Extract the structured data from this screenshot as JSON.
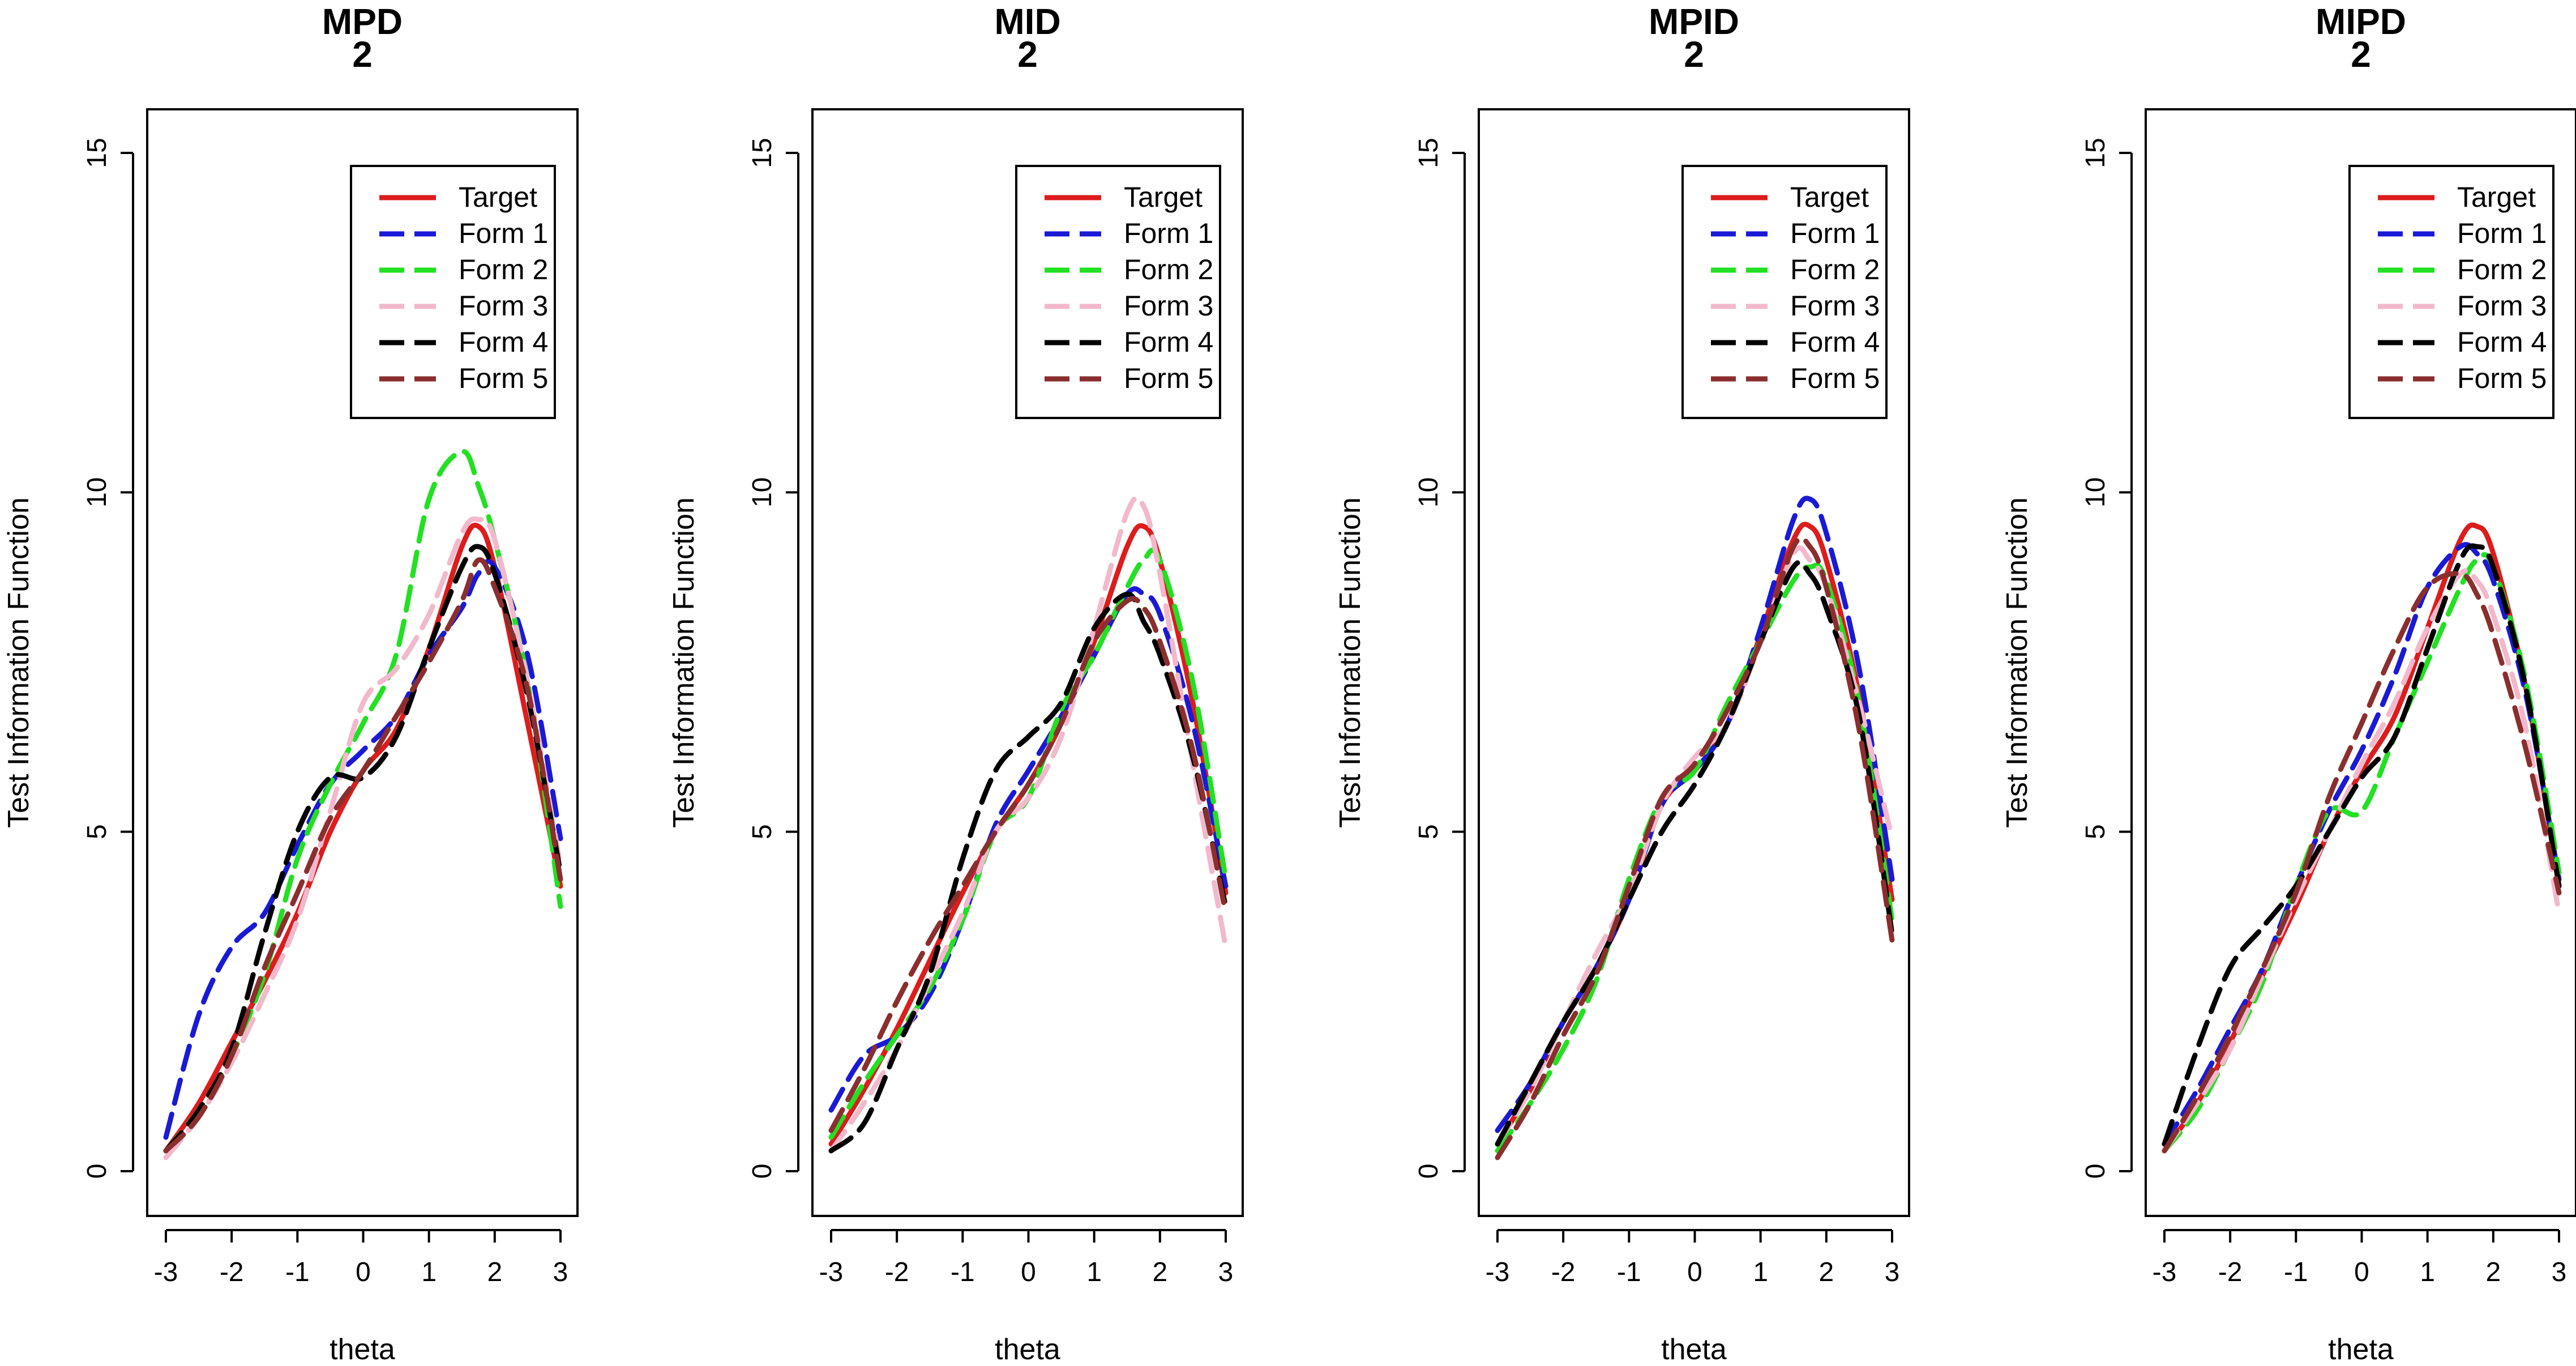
{
  "chart_data": [
    {
      "type": "line",
      "title": "MPD",
      "subtitle": "2",
      "xlabel": "theta",
      "ylabel": "Test Information Function",
      "xlim": [
        -3,
        3
      ],
      "ylim": [
        0,
        15
      ],
      "x_ticks": [
        "-3",
        "-2",
        "-1",
        "0",
        "1",
        "2",
        "3"
      ],
      "y_ticks": [
        "0",
        "5",
        "10",
        "15"
      ],
      "legend_position": "top-right",
      "x": [
        -3,
        -2.5,
        -2,
        -1.5,
        -1,
        -0.5,
        0,
        0.5,
        1,
        1.5,
        1.75,
        2,
        2.5,
        3
      ],
      "series": [
        {
          "name": "Target",
          "color": "#dd1c1c",
          "dash": "solid",
          "values": [
            0.3,
            1.0,
            1.9,
            2.8,
            3.8,
            5.0,
            5.9,
            6.5,
            7.7,
            9.2,
            9.5,
            8.9,
            6.6,
            4.2
          ]
        },
        {
          "name": "Form 1",
          "color": "#1a1ad6",
          "dash": "dashed",
          "values": [
            0.5,
            2.3,
            3.3,
            3.8,
            4.8,
            5.7,
            6.2,
            6.7,
            7.6,
            8.3,
            8.8,
            8.9,
            7.6,
            4.9
          ]
        },
        {
          "name": "Form 2",
          "color": "#22e022",
          "dash": "dashed",
          "values": [
            0.3,
            0.9,
            1.7,
            2.9,
            4.6,
            5.7,
            6.6,
            7.6,
            9.9,
            10.6,
            10.1,
            9.3,
            7.2,
            3.9
          ]
        },
        {
          "name": "Form 3",
          "color": "#f2b8cc",
          "dash": "dashed",
          "values": [
            0.2,
            0.8,
            1.6,
            2.6,
            3.7,
            5.3,
            6.9,
            7.4,
            8.2,
            9.4,
            9.6,
            9.3,
            7.2,
            4.5
          ]
        },
        {
          "name": "Form 4",
          "color": "#000000",
          "dash": "dashed",
          "values": [
            0.3,
            0.9,
            1.8,
            3.5,
            5.0,
            5.8,
            5.8,
            6.4,
            7.7,
            8.9,
            9.2,
            8.8,
            7.0,
            4.4
          ]
        },
        {
          "name": "Form 5",
          "color": "#8b2e2e",
          "dash": "dashed",
          "values": [
            0.3,
            0.8,
            1.7,
            3.0,
            4.1,
            5.2,
            5.9,
            6.7,
            7.5,
            8.4,
            9.0,
            8.6,
            7.1,
            4.3
          ]
        }
      ]
    },
    {
      "type": "line",
      "title": "MID",
      "subtitle": "2",
      "xlabel": "theta",
      "ylabel": "Test Information Function",
      "xlim": [
        -3,
        3
      ],
      "ylim": [
        0,
        15
      ],
      "x_ticks": [
        "-3",
        "-2",
        "-1",
        "0",
        "1",
        "2",
        "3"
      ],
      "y_ticks": [
        "0",
        "5",
        "10",
        "15"
      ],
      "legend_position": "top-right",
      "x": [
        -3,
        -2.5,
        -2,
        -1.5,
        -1,
        -0.5,
        0,
        0.5,
        1,
        1.5,
        1.75,
        2,
        2.5,
        3
      ],
      "series": [
        {
          "name": "Target",
          "color": "#dd1c1c",
          "dash": "solid",
          "values": [
            0.4,
            1.2,
            2.1,
            3.1,
            4.1,
            5.0,
            5.7,
            6.6,
            7.8,
            9.2,
            9.5,
            9.0,
            6.9,
            4.1
          ]
        },
        {
          "name": "Form 1",
          "color": "#1a1ad6",
          "dash": "dashed",
          "values": [
            0.9,
            1.7,
            2.0,
            2.6,
            3.7,
            5.1,
            5.9,
            6.7,
            7.6,
            8.5,
            8.5,
            8.2,
            6.6,
            4.2
          ]
        },
        {
          "name": "Form 2",
          "color": "#22e022",
          "dash": "dashed",
          "values": [
            0.5,
            1.3,
            2.0,
            2.7,
            3.7,
            5.0,
            5.5,
            6.8,
            7.6,
            8.6,
            9.0,
            9.0,
            7.2,
            4.3
          ]
        },
        {
          "name": "Form 3",
          "color": "#f2b8cc",
          "dash": "dashed",
          "values": [
            0.3,
            1.0,
            1.8,
            2.8,
            3.8,
            5.0,
            5.5,
            6.4,
            8.0,
            9.7,
            9.8,
            8.8,
            6.0,
            3.3
          ]
        },
        {
          "name": "Form 4",
          "color": "#000000",
          "dash": "dashed",
          "values": [
            0.3,
            0.7,
            1.8,
            2.9,
            4.6,
            5.9,
            6.4,
            6.9,
            8.0,
            8.5,
            8.1,
            7.6,
            6.1,
            3.9
          ]
        },
        {
          "name": "Form 5",
          "color": "#8b2e2e",
          "dash": "dashed",
          "values": [
            0.6,
            1.5,
            2.5,
            3.4,
            4.2,
            5.0,
            5.7,
            6.6,
            7.8,
            8.4,
            8.3,
            7.8,
            6.2,
            3.8
          ]
        }
      ]
    },
    {
      "type": "line",
      "title": "MPID",
      "subtitle": "2",
      "xlabel": "theta",
      "ylabel": "Test Information Function",
      "xlim": [
        -3,
        3
      ],
      "ylim": [
        0,
        15
      ],
      "x_ticks": [
        "-3",
        "-2",
        "-1",
        "0",
        "1",
        "2",
        "3"
      ],
      "y_ticks": [
        "0",
        "5",
        "10",
        "15"
      ],
      "legend_position": "top-right",
      "x": [
        -3,
        -2.5,
        -2,
        -1.5,
        -1,
        -0.5,
        0,
        0.5,
        1,
        1.5,
        1.75,
        2,
        2.5,
        3
      ],
      "series": [
        {
          "name": "Target",
          "color": "#dd1c1c",
          "dash": "solid",
          "values": [
            0.4,
            1.2,
            2.2,
            3.0,
            4.0,
            5.4,
            5.9,
            6.6,
            7.9,
            9.3,
            9.5,
            9.0,
            7.0,
            4.0
          ]
        },
        {
          "name": "Form 1",
          "color": "#1a1ad6",
          "dash": "dashed",
          "values": [
            0.6,
            1.3,
            2.2,
            3.0,
            4.0,
            5.4,
            5.9,
            6.6,
            8.0,
            9.6,
            9.9,
            9.4,
            7.4,
            4.3
          ]
        },
        {
          "name": "Form 2",
          "color": "#22e022",
          "dash": "dashed",
          "values": [
            0.3,
            1.0,
            1.8,
            2.8,
            4.3,
            5.5,
            5.9,
            6.9,
            7.8,
            8.7,
            8.9,
            8.7,
            6.9,
            3.7
          ]
        },
        {
          "name": "Form 3",
          "color": "#f2b8cc",
          "dash": "dashed",
          "values": [
            0.4,
            1.2,
            2.2,
            3.2,
            4.1,
            5.4,
            6.1,
            6.6,
            7.8,
            9.1,
            9.0,
            8.6,
            6.9,
            4.9
          ]
        },
        {
          "name": "Form 4",
          "color": "#000000",
          "dash": "dashed",
          "values": [
            0.4,
            1.3,
            2.2,
            3.0,
            4.0,
            5.0,
            5.7,
            6.6,
            7.8,
            8.9,
            8.8,
            8.3,
            6.7,
            3.5
          ]
        },
        {
          "name": "Form 5",
          "color": "#8b2e2e",
          "dash": "dashed",
          "values": [
            0.2,
            1.0,
            2.0,
            2.9,
            4.2,
            5.5,
            6.0,
            6.8,
            7.8,
            9.2,
            9.2,
            8.6,
            6.5,
            3.4
          ]
        }
      ]
    },
    {
      "type": "line",
      "title": "MIPD",
      "subtitle": "2",
      "xlabel": "theta",
      "ylabel": "Test Information Function",
      "xlim": [
        -3,
        3
      ],
      "ylim": [
        0,
        15
      ],
      "x_ticks": [
        "-3",
        "-2",
        "-1",
        "0",
        "1",
        "2",
        "3"
      ],
      "y_ticks": [
        "0",
        "5",
        "10",
        "15"
      ],
      "legend_position": "top-right",
      "x": [
        -3,
        -2.5,
        -2,
        -1.5,
        -1,
        -0.5,
        0,
        0.5,
        1,
        1.5,
        1.75,
        2,
        2.5,
        3
      ],
      "series": [
        {
          "name": "Target",
          "color": "#dd1c1c",
          "dash": "solid",
          "values": [
            0.3,
            1.0,
            1.9,
            2.9,
            3.9,
            5.0,
            5.9,
            6.7,
            8.0,
            9.3,
            9.5,
            9.1,
            7.1,
            4.2
          ]
        },
        {
          "name": "Form 1",
          "color": "#1a1ad6",
          "dash": "dashed",
          "values": [
            0.4,
            1.2,
            2.1,
            3.0,
            4.2,
            5.3,
            6.2,
            7.3,
            8.6,
            9.2,
            9.1,
            8.7,
            7.0,
            4.3
          ]
        },
        {
          "name": "Form 2",
          "color": "#22e022",
          "dash": "dashed",
          "values": [
            0.3,
            0.9,
            1.8,
            2.8,
            4.2,
            5.3,
            5.3,
            6.4,
            7.5,
            8.6,
            9.0,
            8.9,
            7.2,
            4.4
          ]
        },
        {
          "name": "Form 3",
          "color": "#f2b8cc",
          "dash": "dashed",
          "values": [
            0.3,
            1.0,
            1.8,
            2.9,
            4.0,
            5.0,
            6.0,
            6.9,
            8.0,
            8.8,
            8.7,
            8.2,
            6.5,
            3.8
          ]
        },
        {
          "name": "Form 4",
          "color": "#000000",
          "dash": "dashed",
          "values": [
            0.4,
            1.8,
            3.0,
            3.6,
            4.2,
            5.0,
            5.8,
            6.4,
            7.7,
            9.0,
            9.2,
            8.9,
            7.1,
            4.2
          ]
        },
        {
          "name": "Form 5",
          "color": "#8b2e2e",
          "dash": "dashed",
          "values": [
            0.3,
            1.1,
            2.0,
            3.0,
            4.1,
            5.5,
            6.6,
            7.7,
            8.6,
            8.8,
            8.5,
            7.9,
            6.2,
            4.1
          ]
        }
      ]
    }
  ]
}
